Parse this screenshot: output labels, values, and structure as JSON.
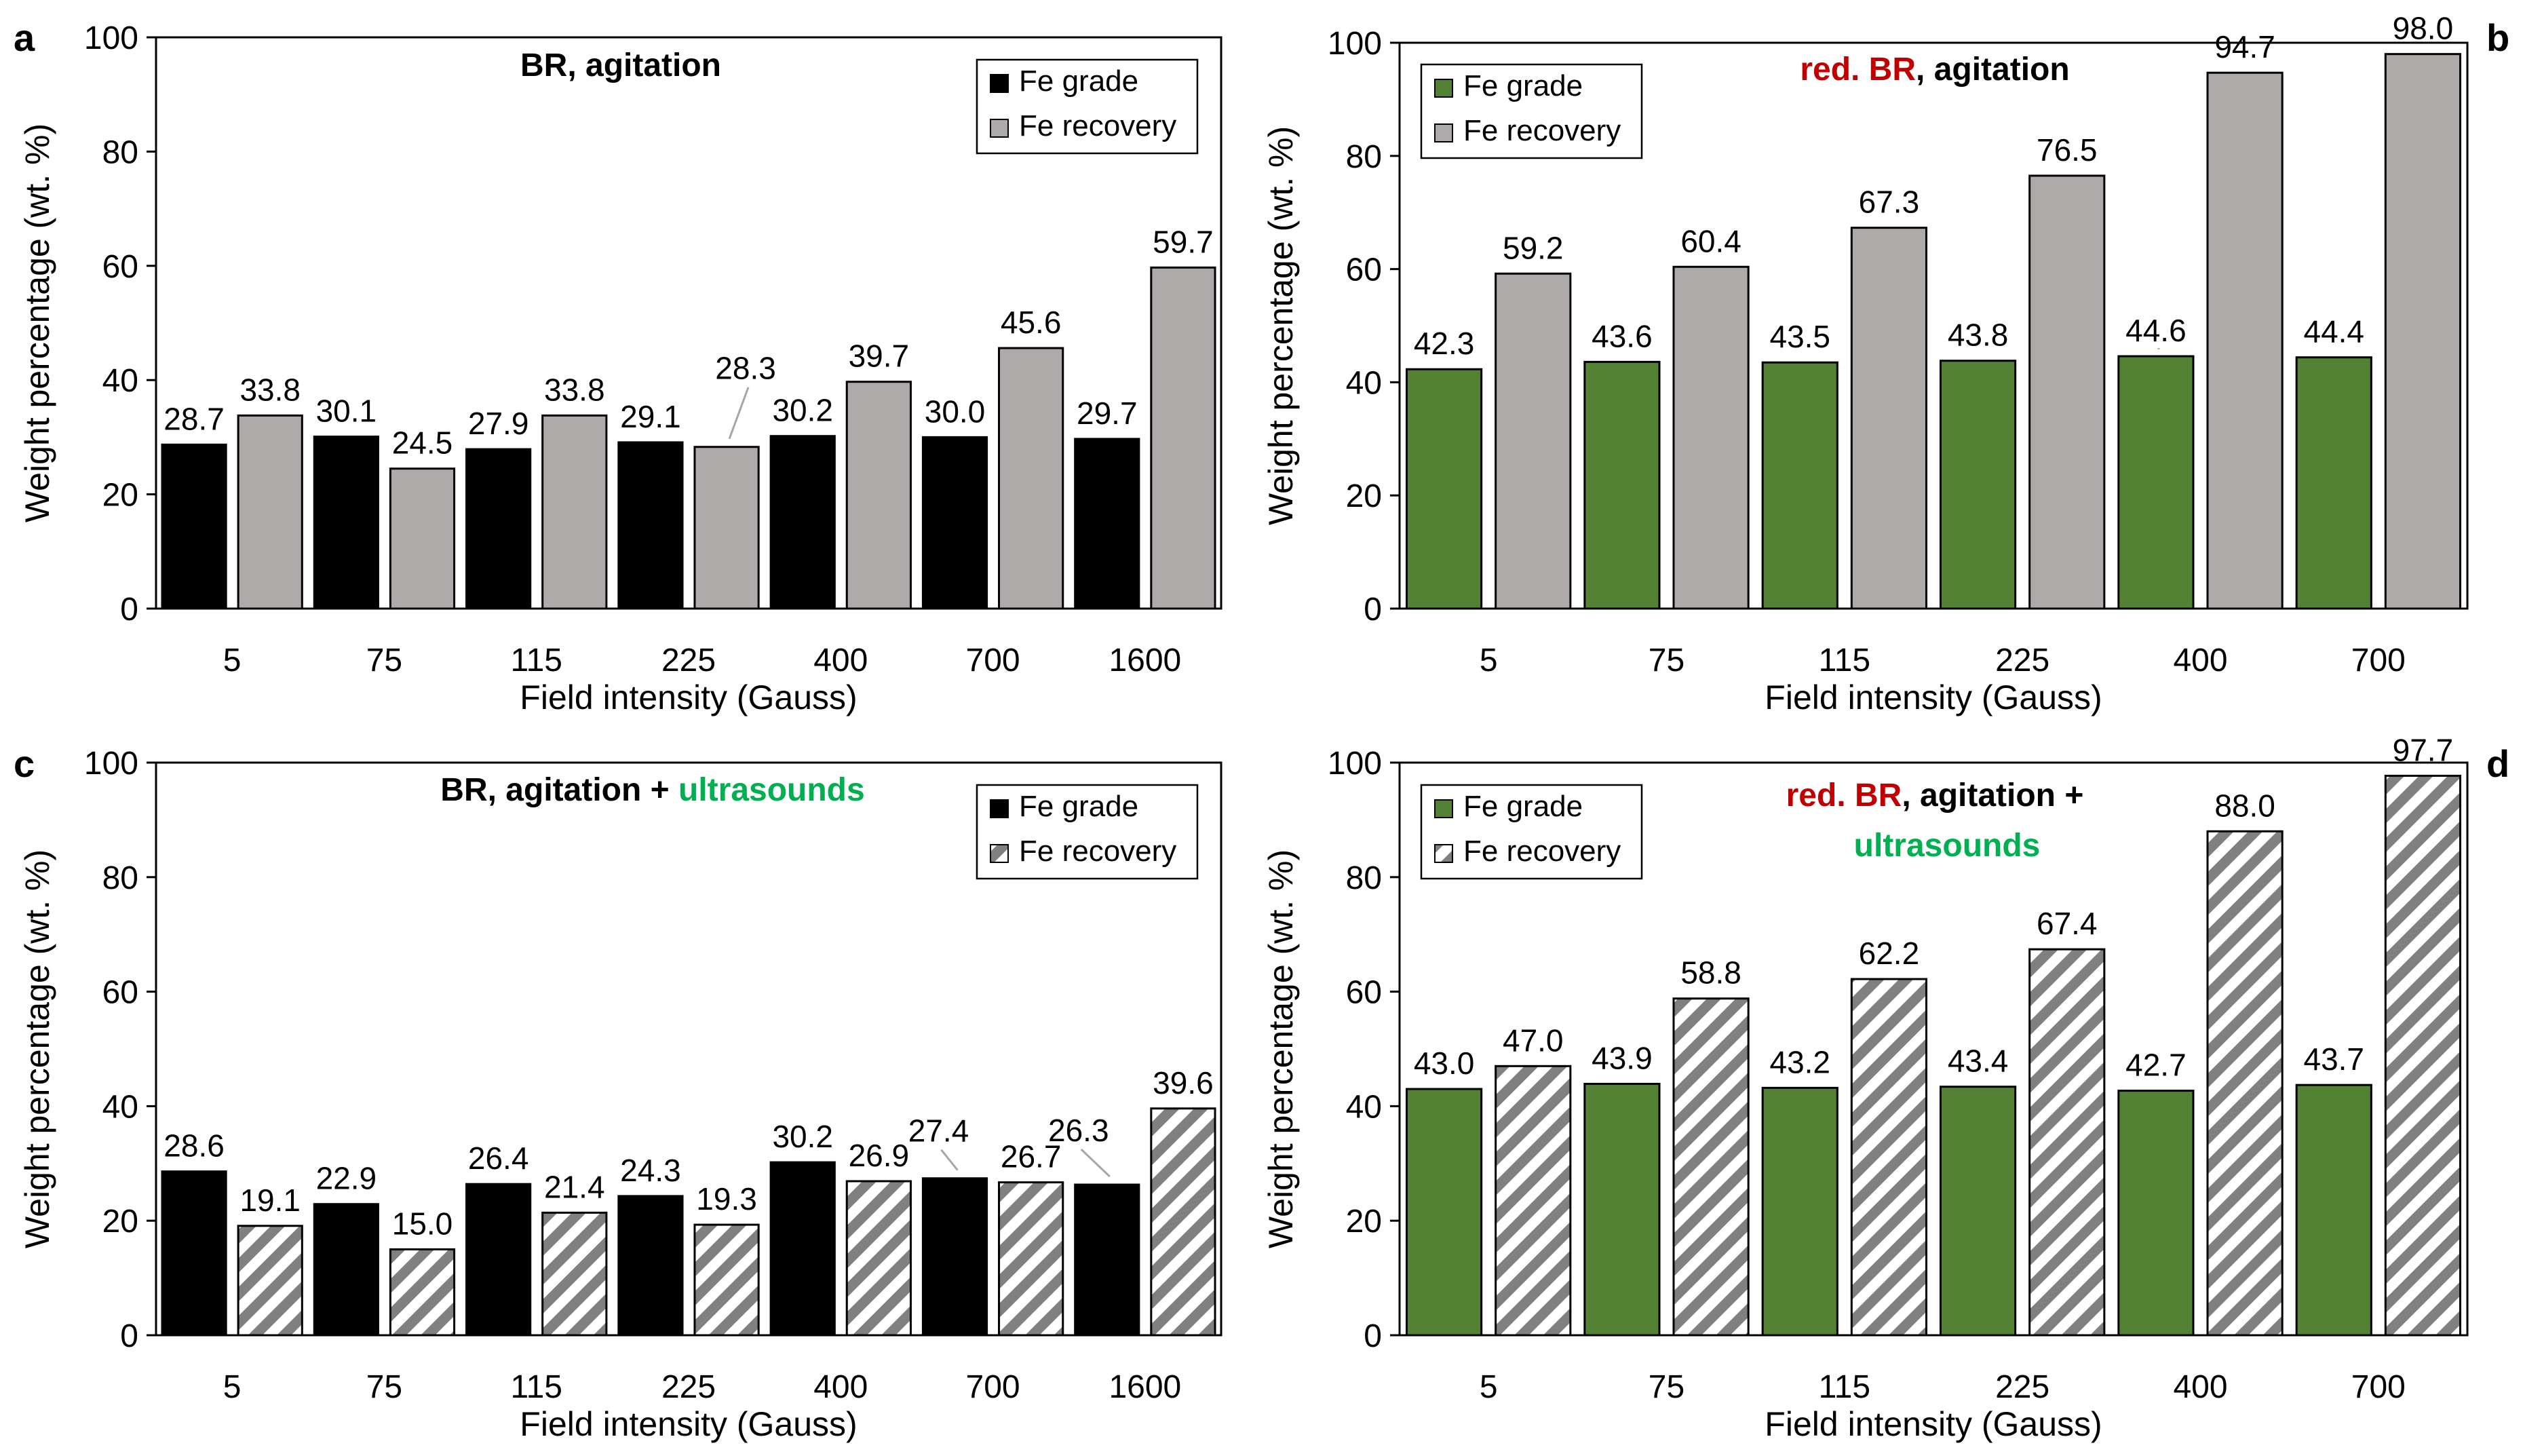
{
  "colors": {
    "black": "#000000",
    "gray": "#aeaaaa",
    "green": "#548235",
    "red": "#c00000",
    "bright_green": "#00b050"
  },
  "chart_data": [
    {
      "panel": "a",
      "type": "bar",
      "title_parts": [
        {
          "text": "BR, agitation",
          "color": "#000000"
        }
      ],
      "categories": [
        "5",
        "75",
        "115",
        "225",
        "400",
        "700",
        "1600"
      ],
      "series": [
        {
          "name": "Fe grade",
          "values": [
            28.7,
            30.1,
            27.9,
            29.1,
            30.2,
            30.0,
            29.7
          ],
          "style": "solid",
          "color": "#000000",
          "labels": [
            "28.7",
            "30.1",
            "27.9",
            "29.1",
            "30.2",
            "30.0",
            "29.7"
          ]
        },
        {
          "name": "Fe recovery",
          "values": [
            33.8,
            24.5,
            33.8,
            28.3,
            39.7,
            45.6,
            59.7
          ],
          "style": "solid",
          "color": "#aeaaaa",
          "labels": [
            "33.8",
            "24.5",
            "33.8",
            "28.3",
            "39.7",
            "45.6",
            "59.7"
          ]
        }
      ],
      "xlabel": "Field intensity (Gauss)",
      "ylabel": "Weight percentage (wt. %)",
      "ylim": [
        0,
        100
      ],
      "yticks": [
        0,
        20,
        40,
        60,
        80,
        100
      ],
      "legend": "top-right"
    },
    {
      "panel": "b",
      "type": "bar",
      "title_parts": [
        {
          "text": "red. BR",
          "color": "#c00000"
        },
        {
          "text": ", agitation",
          "color": "#000000"
        }
      ],
      "categories": [
        "5",
        "75",
        "115",
        "225",
        "400",
        "700"
      ],
      "series": [
        {
          "name": "Fe grade",
          "values": [
            42.3,
            43.6,
            43.5,
            43.8,
            44.6,
            44.4
          ],
          "style": "solid",
          "color": "#548235",
          "labels": [
            "42.3",
            "43.6",
            "43.5",
            "43.8",
            "44.6",
            "44.4"
          ]
        },
        {
          "name": "Fe recovery",
          "values": [
            59.2,
            60.4,
            67.3,
            76.5,
            94.7,
            98.0
          ],
          "style": "solid",
          "color": "#aeaaaa",
          "labels": [
            "59.2",
            "60.4",
            "67.3",
            "76.5",
            "94.7",
            "98.0"
          ]
        }
      ],
      "xlabel": "Field intensity (Gauss)",
      "ylabel": "Weight percentage (wt. %)",
      "ylim": [
        0,
        100
      ],
      "yticks": [
        0,
        20,
        40,
        60,
        80,
        100
      ],
      "legend": "top-left"
    },
    {
      "panel": "c",
      "type": "bar",
      "title_parts": [
        {
          "text": "BR, agitation + ",
          "color": "#000000"
        },
        {
          "text": "ultrasounds",
          "color": "#00b050"
        }
      ],
      "categories": [
        "5",
        "75",
        "115",
        "225",
        "400",
        "700",
        "1600"
      ],
      "series": [
        {
          "name": "Fe grade",
          "values": [
            28.6,
            22.9,
            26.4,
            24.3,
            30.2,
            27.4,
            26.3
          ],
          "style": "solid",
          "color": "#000000",
          "labels": [
            "28.6",
            "22.9",
            "26.4",
            "24.3",
            "30.2",
            "27.4",
            "26.3"
          ]
        },
        {
          "name": "Fe recovery",
          "values": [
            19.1,
            15.0,
            21.4,
            19.3,
            26.9,
            26.7,
            39.6
          ],
          "style": "hatch",
          "color": "#808080",
          "labels": [
            "19.1",
            "15.0",
            "21.4",
            "19.3",
            "26.9",
            "26.7",
            "39.6"
          ]
        }
      ],
      "xlabel": "Field intensity (Gauss)",
      "ylabel": "Weight percentage (wt. %)",
      "ylim": [
        0,
        100
      ],
      "yticks": [
        0,
        20,
        40,
        60,
        80,
        100
      ],
      "legend": "top-right"
    },
    {
      "panel": "d",
      "type": "bar",
      "title_parts": [
        {
          "text": "red. BR",
          "color": "#c00000"
        },
        {
          "text": ", agitation +",
          "color": "#000000"
        }
      ],
      "title_line2_parts": [
        {
          "text": "ultrasounds",
          "color": "#00b050"
        }
      ],
      "categories": [
        "5",
        "75",
        "115",
        "225",
        "400",
        "700"
      ],
      "series": [
        {
          "name": "Fe grade",
          "values": [
            43.0,
            43.9,
            43.2,
            43.4,
            42.7,
            43.7
          ],
          "style": "solid",
          "color": "#548235",
          "labels": [
            "43.0",
            "43.9",
            "43.2",
            "43.4",
            "42.7",
            "43.7"
          ]
        },
        {
          "name": "Fe recovery",
          "values": [
            47.0,
            58.8,
            62.2,
            67.4,
            88.0,
            97.7
          ],
          "style": "hatch",
          "color": "#808080",
          "labels": [
            "47.0",
            "58.8",
            "62.2",
            "67.4",
            "88.0",
            "97.7"
          ]
        }
      ],
      "xlabel": "Field intensity (Gauss)",
      "ylabel": "Weight percentage (wt. %)",
      "ylim": [
        0,
        100
      ],
      "yticks": [
        0,
        20,
        40,
        60,
        80,
        100
      ],
      "legend": "top-left"
    }
  ]
}
